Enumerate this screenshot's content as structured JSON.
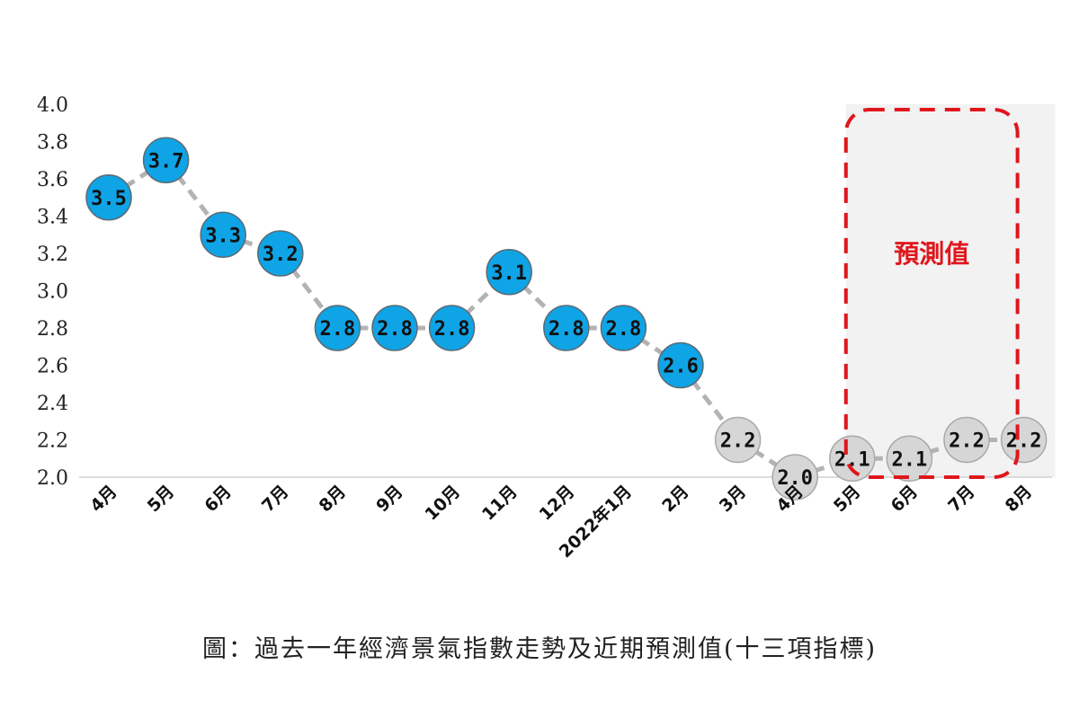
{
  "chart_data": {
    "type": "line",
    "categories": [
      "4月",
      "5月",
      "6月",
      "7月",
      "8月",
      "9月",
      "10月",
      "11月",
      "12月",
      "2022年1月",
      "2月",
      "3月",
      "4月",
      "5月",
      "6月",
      "7月",
      "8月"
    ],
    "values": [
      3.5,
      3.7,
      3.3,
      3.2,
      2.8,
      2.8,
      2.8,
      3.1,
      2.8,
      2.8,
      2.6,
      2.2,
      2.0,
      2.1,
      2.1,
      2.2,
      2.2
    ],
    "value_labels": [
      "3.5",
      "3.7",
      "3.3",
      "3.2",
      "2.8",
      "2.8",
      "2.8",
      "3.1",
      "2.8",
      "2.8",
      "2.6",
      "2.2",
      "2.0",
      "2.1",
      "2.1",
      "2.2",
      "2.2"
    ],
    "yticks": [
      "2.0",
      "2.2",
      "2.4",
      "2.6",
      "2.8",
      "3.0",
      "3.2",
      "3.4",
      "3.6",
      "3.8",
      "4.0"
    ],
    "ylim": [
      2.0,
      4.0
    ],
    "grid": false,
    "colors": {
      "actual": "#0fa4e6",
      "actual_stroke": "#5d6a72",
      "other": "#d6d6d6",
      "other_stroke": "#a9a9a9",
      "connector": "#b3b3b3",
      "forecast_border": "#e0161c",
      "forecast_fill": "#f2f2f2"
    },
    "actual_count": 11,
    "forecast_start_index": 13,
    "forecast_label": "預測值"
  },
  "caption": "圖：過去一年經濟景氣指數走勢及近期預測值(十三項指標)"
}
